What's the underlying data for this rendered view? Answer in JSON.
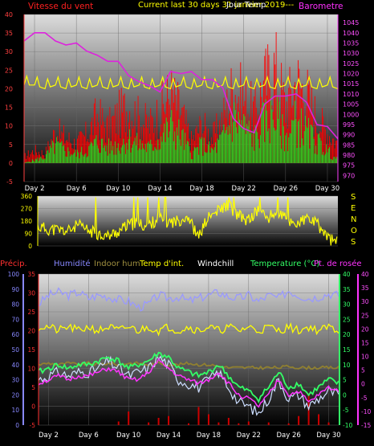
{
  "header": {
    "wind_label": "Vitesse du vent",
    "title": "Current last 30 days 31 janvier 2019---",
    "title_overlay": "Jour Temp",
    "baro_label": "Barometre"
  },
  "compass": [
    "S",
    "E",
    "N",
    "O",
    "S"
  ],
  "legend3": [
    {
      "label": "Précip.",
      "color": "#ff3030"
    },
    {
      "label": "Humidité",
      "color": "#8888ff"
    },
    {
      "label": "Indoor hum",
      "color": "#a09040"
    },
    {
      "label": "Temp d'int.",
      "color": "#ffff00"
    },
    {
      "label": "Windchill",
      "color": "#ffffff"
    },
    {
      "label": "Temperature (°C)",
      "color": "#33ff66"
    },
    {
      "label": "Pt. de rosée",
      "color": "#ff33ff"
    }
  ],
  "colors": {
    "wind_gust": "#ff0000",
    "wind_avg": "#22dd22",
    "barometer": "#dd22dd",
    "indoor_temp": "#ffff00",
    "wind_dir": "#ffff00",
    "humidity": "#9999ff",
    "indoor_hum": "#908030",
    "temperature": "#33ff66",
    "dewpoint": "#ff33ff",
    "windchill": "#ccddff",
    "precip": "#cc0000"
  },
  "chart_data": [
    {
      "type": "area",
      "title": "Current last 30 days 31 janvier 2019---",
      "categories": [
        "Day 2",
        "Day 6",
        "Day 10",
        "Day 14",
        "Day 18",
        "Day 22",
        "Day 26",
        "Day 30"
      ],
      "y_left": {
        "label": "Vitesse du vent",
        "ticks": [
          -5,
          0,
          5,
          10,
          15,
          20,
          25,
          30,
          35,
          40
        ],
        "range": [
          -5,
          40
        ]
      },
      "y_right": {
        "label": "Barometre",
        "ticks": [
          970,
          975,
          980,
          985,
          990,
          995,
          1000,
          1005,
          1010,
          1015,
          1020,
          1025,
          1030,
          1035,
          1040,
          1045
        ],
        "range": [
          967,
          1049
        ]
      },
      "series": [
        {
          "name": "Barometre",
          "axis": "right",
          "x": [
            1,
            2,
            3,
            4,
            5,
            6,
            7,
            8,
            9,
            10,
            11,
            12,
            13,
            14,
            15,
            16,
            17,
            18,
            19,
            20,
            21,
            22,
            23,
            24,
            25,
            26,
            27,
            28,
            29,
            30,
            31
          ],
          "values": [
            1036,
            1040,
            1040,
            1036,
            1034,
            1035,
            1031,
            1029,
            1026,
            1026,
            1019,
            1016,
            1014,
            1011,
            1021,
            1020,
            1021,
            1017,
            1017,
            1013,
            998,
            993,
            991,
            1005,
            1009,
            1009,
            1010,
            1006,
            995,
            994,
            988
          ]
        },
        {
          "x": [
            1,
            2,
            3,
            4,
            5,
            6,
            7,
            8,
            9,
            10,
            11,
            12,
            13,
            14,
            15,
            16,
            17,
            18,
            19,
            20,
            21,
            22,
            23,
            24,
            25,
            26,
            27,
            28,
            29,
            30,
            31
          ],
          "values": [
            21,
            21,
            20,
            21,
            20,
            21,
            20,
            21,
            20,
            21,
            20,
            21,
            20,
            21,
            20,
            21,
            20,
            21,
            20,
            21,
            20,
            21,
            20,
            21,
            20,
            21,
            20,
            21,
            20,
            21,
            20
          ]
        },
        {
          "x": [
            1,
            2,
            3,
            4,
            5,
            6,
            7,
            8,
            9,
            10,
            11,
            12,
            13,
            14,
            15,
            16,
            17,
            18,
            19,
            20,
            21,
            22,
            23,
            24,
            25,
            26,
            27,
            28,
            29,
            30,
            31
          ],
          "values": [
            2,
            4,
            3,
            10,
            8,
            6,
            9,
            15,
            11,
            15,
            18,
            14,
            12,
            16,
            22,
            16,
            7,
            12,
            8,
            14,
            24,
            20,
            16,
            25,
            30,
            18,
            26,
            22,
            14,
            10,
            6
          ]
        },
        {
          "x": [
            1,
            2,
            3,
            4,
            5,
            6,
            7,
            8,
            9,
            10,
            11,
            12,
            13,
            14,
            15,
            16,
            17,
            18,
            19,
            20,
            21,
            22,
            23,
            24,
            25,
            26,
            27,
            28,
            29,
            30,
            31
          ],
          "values": [
            0,
            1,
            2,
            6,
            4,
            3,
            4,
            7,
            5,
            6,
            8,
            6,
            5,
            8,
            12,
            9,
            3,
            6,
            4,
            8,
            15,
            12,
            8,
            14,
            16,
            8,
            14,
            10,
            7,
            4,
            1
          ]
        }
      ]
    },
    {
      "type": "line",
      "categories": [
        "Day 2",
        "Day 6",
        "Day 10",
        "Day 14",
        "Day 18",
        "Day 22",
        "Day 26",
        "Day 30"
      ],
      "y_left": {
        "ticks": [
          0,
          90,
          180,
          270,
          360
        ],
        "range": [
          0,
          360
        ]
      },
      "series": [
        {
          "x": [
            1,
            2,
            3,
            4,
            5,
            6,
            7,
            8,
            9,
            10,
            11,
            12,
            13,
            14,
            15,
            16,
            17,
            18,
            19,
            20,
            21,
            22,
            23,
            24,
            25,
            26,
            27,
            28,
            29,
            30,
            31
          ],
          "values": [
            140,
            120,
            115,
            105,
            150,
            110,
            90,
            70,
            100,
            150,
            160,
            140,
            200,
            170,
            180,
            220,
            60,
            200,
            250,
            300,
            220,
            180,
            260,
            200,
            250,
            180,
            160,
            200,
            150,
            60,
            20
          ]
        }
      ]
    },
    {
      "type": "line",
      "categories": [
        "Day 2",
        "Day 6",
        "Day 10",
        "Day 14",
        "Day 18",
        "Day 22",
        "Day 26",
        "Day 30"
      ],
      "y_precip": {
        "ticks": [
          0,
          10,
          20,
          30,
          40,
          50,
          60,
          70,
          80,
          90,
          100
        ],
        "range": [
          0,
          100
        ]
      },
      "y_left": {
        "ticks": [
          -5,
          0,
          5,
          10,
          15,
          20,
          25,
          30,
          35
        ],
        "range": [
          -5,
          35
        ]
      },
      "y_right_green": {
        "ticks": [
          -10,
          -5,
          0,
          5,
          10,
          15,
          20,
          25,
          30,
          35,
          40
        ],
        "range": [
          -10,
          40
        ]
      },
      "y_right_pink": {
        "ticks": [
          -15,
          -10,
          -5,
          0,
          5,
          10,
          15,
          20,
          25,
          30,
          35,
          40
        ],
        "range": [
          -15,
          40
        ]
      },
      "series": [
        {
          "name": "Humidité",
          "x": [
            1,
            2,
            3,
            4,
            5,
            6,
            7,
            8,
            9,
            10,
            11,
            12,
            13,
            14,
            15,
            16,
            17,
            18,
            19,
            20,
            21,
            22,
            23,
            24,
            25,
            26,
            27,
            28,
            29,
            30,
            31
          ],
          "values": [
            80,
            86,
            88,
            86,
            88,
            84,
            86,
            85,
            83,
            82,
            78,
            80,
            86,
            84,
            85,
            82,
            84,
            86,
            88,
            85,
            84,
            86,
            82,
            86,
            84,
            89,
            86,
            84,
            85,
            87,
            86
          ]
        },
        {
          "name": "Indoor hum",
          "x": [
            1,
            2,
            3,
            4,
            5,
            6,
            7,
            8,
            9,
            10,
            11,
            12,
            13,
            14,
            15,
            16,
            17,
            18,
            19,
            20,
            21,
            22,
            23,
            24,
            25,
            26,
            27,
            28,
            29,
            30,
            31
          ],
          "values": [
            40,
            41,
            40,
            41,
            40,
            41,
            40,
            41,
            40,
            41,
            41,
            40,
            41,
            40,
            40,
            41,
            40,
            40,
            39,
            38,
            38,
            38,
            38,
            38,
            38,
            39,
            38,
            38,
            38,
            38,
            38
          ]
        },
        {
          "name": "Temp d'int.",
          "x": [
            1,
            2,
            3,
            4,
            5,
            6,
            7,
            8,
            9,
            10,
            11,
            12,
            13,
            14,
            15,
            16,
            17,
            18,
            19,
            20,
            21,
            22,
            23,
            24,
            25,
            26,
            27,
            28,
            29,
            30,
            31
          ],
          "values": [
            21,
            21,
            20,
            21,
            20,
            21,
            20,
            21,
            20,
            21,
            20,
            21,
            20,
            21,
            20,
            21,
            20,
            21,
            20,
            21,
            20,
            21,
            20,
            21,
            20,
            21,
            20,
            21,
            20,
            21,
            20
          ]
        },
        {
          "name": "Temperature (°C)",
          "x": [
            1,
            2,
            3,
            4,
            5,
            6,
            7,
            8,
            9,
            10,
            11,
            12,
            13,
            14,
            15,
            16,
            17,
            18,
            19,
            20,
            21,
            22,
            23,
            24,
            25,
            26,
            27,
            28,
            29,
            30,
            31
          ],
          "values": [
            9,
            10,
            11,
            10,
            11,
            11,
            12,
            13,
            12,
            10,
            11,
            12,
            14,
            13,
            10,
            9,
            8,
            9,
            11,
            8,
            5,
            4,
            2,
            5,
            9,
            5,
            6,
            3,
            5,
            7,
            6
          ]
        },
        {
          "name": "Pt. de rosée",
          "x": [
            1,
            2,
            3,
            4,
            5,
            6,
            7,
            8,
            9,
            10,
            11,
            12,
            13,
            14,
            15,
            16,
            17,
            18,
            19,
            20,
            21,
            22,
            23,
            24,
            25,
            26,
            27,
            28,
            29,
            30,
            31
          ],
          "values": [
            6,
            7,
            8,
            7,
            8,
            8,
            9,
            10,
            9,
            7,
            7,
            9,
            12,
            10,
            8,
            7,
            6,
            7,
            9,
            6,
            3,
            2,
            0,
            3,
            7,
            3,
            4,
            1,
            3,
            5,
            4
          ]
        },
        {
          "name": "Windchill",
          "x": [
            1,
            2,
            3,
            4,
            5,
            6,
            7,
            8,
            9,
            10,
            11,
            12,
            13,
            14,
            15,
            16,
            17,
            18,
            19,
            20,
            21,
            22,
            23,
            24,
            25,
            26,
            27,
            28,
            29,
            30,
            31
          ],
          "values": [
            7,
            8,
            9,
            8,
            9,
            9,
            10,
            12,
            10,
            8,
            9,
            10,
            13,
            11,
            7,
            6,
            5,
            7,
            9,
            5,
            1,
            0,
            -2,
            2,
            7,
            2,
            3,
            0,
            2,
            4,
            3
          ]
        },
        {
          "name": "Précip.",
          "x": [
            1,
            2,
            3,
            4,
            5,
            6,
            7,
            8,
            9,
            10,
            11,
            12,
            13,
            14,
            15,
            16,
            17,
            18,
            19,
            20,
            21,
            22,
            23,
            24,
            25,
            26,
            27,
            28,
            29,
            30,
            31
          ],
          "values": [
            0,
            0,
            0,
            0,
            0,
            0,
            0,
            0,
            4,
            15,
            0,
            3,
            8,
            10,
            0,
            2,
            20,
            12,
            3,
            8,
            2,
            4,
            0,
            3,
            0,
            2,
            10,
            35,
            12,
            3,
            0
          ]
        }
      ]
    }
  ]
}
